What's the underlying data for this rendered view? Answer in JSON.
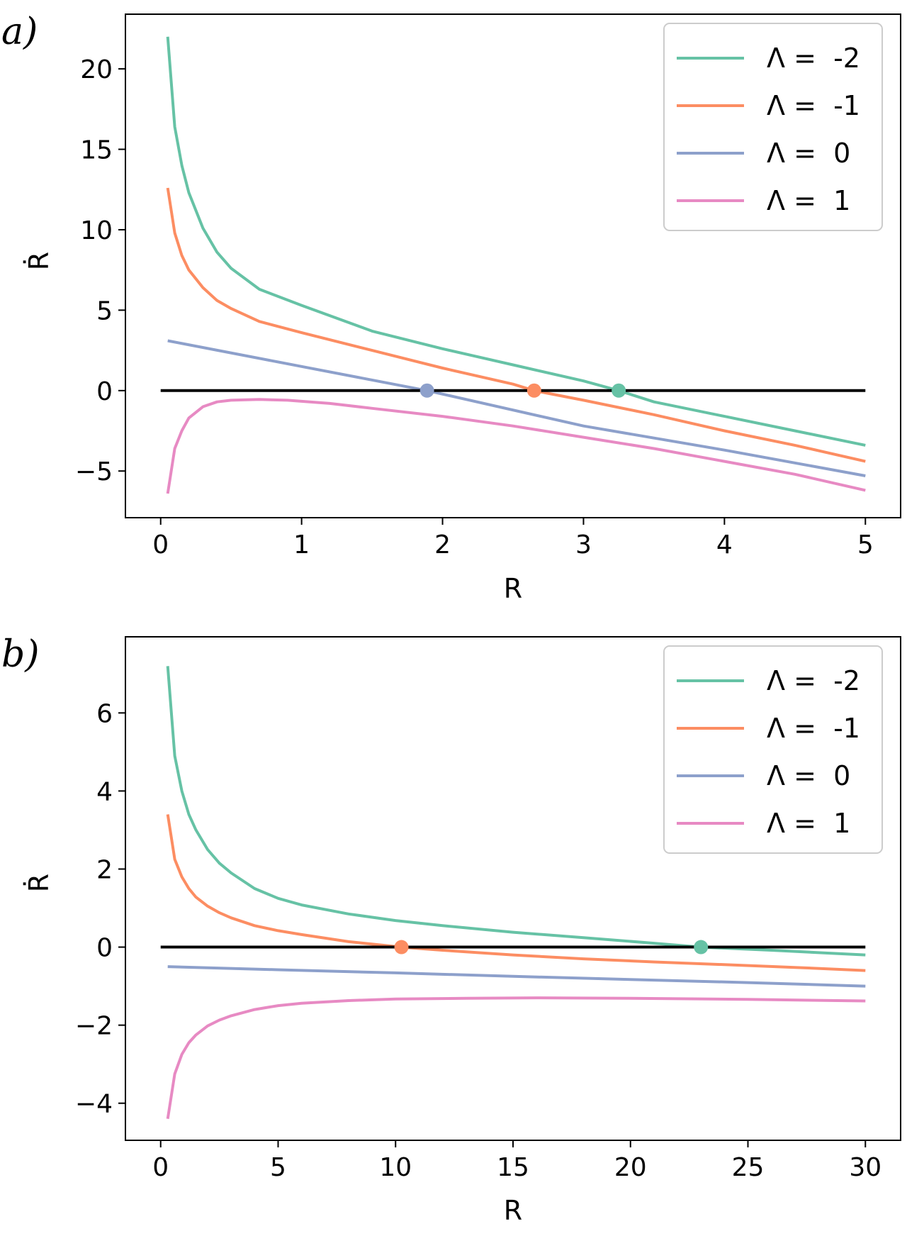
{
  "chart_data": [
    {
      "panel_label": "a)",
      "type": "line",
      "title": "",
      "xlabel": "R",
      "ylabel": "Ṙ",
      "xlim": [
        -0.25,
        5.25
      ],
      "ylim": [
        -7.9,
        23.4
      ],
      "xticks": [
        0,
        1,
        2,
        3,
        4,
        5
      ],
      "xtick_labels": [
        "0",
        "1",
        "2",
        "3",
        "4",
        "5"
      ],
      "yticks": [
        -5,
        0,
        5,
        10,
        15,
        20
      ],
      "ytick_labels": [
        "−5",
        "0",
        "5",
        "10",
        "15",
        "20"
      ],
      "grid": false,
      "legend_position": "top-right",
      "zero_line": {
        "x": [
          0,
          5
        ],
        "y": 0,
        "color": "#000000"
      },
      "series": [
        {
          "name": "Λ =  -2",
          "color": "#66c2a5",
          "x": [
            0.05,
            0.1,
            0.15,
            0.2,
            0.3,
            0.4,
            0.5,
            0.7,
            1.0,
            1.5,
            2.0,
            2.5,
            3.0,
            3.25,
            3.5,
            4.0,
            4.5,
            5.0
          ],
          "values": [
            22.0,
            16.4,
            14.0,
            12.3,
            10.1,
            8.6,
            7.6,
            6.3,
            5.3,
            3.7,
            2.6,
            1.6,
            0.6,
            0.0,
            -0.7,
            -1.6,
            -2.5,
            -3.4
          ]
        },
        {
          "name": "Λ =  -1",
          "color": "#fc8d62",
          "x": [
            0.05,
            0.1,
            0.15,
            0.2,
            0.3,
            0.4,
            0.5,
            0.7,
            1.0,
            1.5,
            2.0,
            2.5,
            2.65,
            3.0,
            3.5,
            4.0,
            4.5,
            5.0
          ],
          "values": [
            12.6,
            9.8,
            8.4,
            7.5,
            6.4,
            5.6,
            5.1,
            4.3,
            3.6,
            2.5,
            1.4,
            0.4,
            0.0,
            -0.6,
            -1.5,
            -2.5,
            -3.4,
            -4.4
          ]
        },
        {
          "name": "Λ =  0",
          "color": "#8da0cb",
          "x": [
            0.05,
            1.0,
            1.89,
            3.0,
            4.0,
            5.0
          ],
          "values": [
            3.1,
            1.5,
            0.0,
            -2.2,
            -3.7,
            -5.3
          ]
        },
        {
          "name": "Λ =  1",
          "color": "#e78ac3",
          "x": [
            0.05,
            0.1,
            0.15,
            0.2,
            0.3,
            0.4,
            0.5,
            0.7,
            0.9,
            1.2,
            1.5,
            2.0,
            2.5,
            3.0,
            3.5,
            4.0,
            4.5,
            5.0
          ],
          "values": [
            -6.4,
            -3.6,
            -2.5,
            -1.7,
            -1.0,
            -0.7,
            -0.6,
            -0.55,
            -0.6,
            -0.8,
            -1.1,
            -1.6,
            -2.2,
            -2.9,
            -3.6,
            -4.4,
            -5.2,
            -6.2
          ]
        }
      ],
      "fixed_points": [
        {
          "x": 1.89,
          "y": 0,
          "color": "#8da0cb"
        },
        {
          "x": 2.65,
          "y": 0,
          "color": "#fc8d62"
        },
        {
          "x": 3.25,
          "y": 0,
          "color": "#66c2a5"
        }
      ]
    },
    {
      "panel_label": "b)",
      "type": "line",
      "title": "",
      "xlabel": "R",
      "ylabel": "Ṙ",
      "xlim": [
        -1.5,
        31.5
      ],
      "ylim": [
        -4.95,
        7.95
      ],
      "xticks": [
        0,
        5,
        10,
        15,
        20,
        25,
        30
      ],
      "xtick_labels": [
        "0",
        "5",
        "10",
        "15",
        "20",
        "25",
        "30"
      ],
      "yticks": [
        -4,
        -2,
        0,
        2,
        4,
        6
      ],
      "ytick_labels": [
        "−4",
        "−2",
        "0",
        "2",
        "4",
        "6"
      ],
      "grid": false,
      "legend_position": "top-right",
      "zero_line": {
        "x": [
          0,
          30
        ],
        "y": 0,
        "color": "#000000"
      },
      "series": [
        {
          "name": "Λ =  -2",
          "color": "#66c2a5",
          "x": [
            0.3,
            0.6,
            0.9,
            1.2,
            1.5,
            2.0,
            2.5,
            3.0,
            4.0,
            5.0,
            6.0,
            8.0,
            10.0,
            12.0,
            15.0,
            18.0,
            21.0,
            23.0,
            26.0,
            30.0
          ],
          "values": [
            7.2,
            4.9,
            4.0,
            3.4,
            3.0,
            2.5,
            2.15,
            1.9,
            1.5,
            1.25,
            1.08,
            0.85,
            0.68,
            0.55,
            0.38,
            0.24,
            0.1,
            0.0,
            -0.08,
            -0.2
          ]
        },
        {
          "name": "Λ =  -1",
          "color": "#fc8d62",
          "x": [
            0.3,
            0.6,
            0.9,
            1.2,
            1.5,
            2.0,
            2.5,
            3.0,
            4.0,
            5.0,
            6.0,
            8.0,
            10.25,
            12.0,
            15.0,
            18.0,
            21.0,
            24.0,
            27.0,
            30.0
          ],
          "values": [
            3.4,
            2.25,
            1.8,
            1.5,
            1.28,
            1.05,
            0.88,
            0.75,
            0.55,
            0.42,
            0.32,
            0.14,
            0.0,
            -0.08,
            -0.2,
            -0.3,
            -0.38,
            -0.45,
            -0.52,
            -0.6
          ]
        },
        {
          "name": "Λ =  0",
          "color": "#8da0cb",
          "x": [
            0.3,
            5.0,
            10.0,
            15.0,
            20.0,
            25.0,
            30.0
          ],
          "values": [
            -0.5,
            -0.58,
            -0.66,
            -0.75,
            -0.83,
            -0.91,
            -1.0
          ]
        },
        {
          "name": "Λ =  1",
          "color": "#e78ac3",
          "x": [
            0.3,
            0.6,
            0.9,
            1.2,
            1.5,
            2.0,
            2.5,
            3.0,
            4.0,
            5.0,
            6.0,
            8.0,
            10.0,
            13.0,
            16.0,
            20.0,
            25.0,
            30.0
          ],
          "values": [
            -4.4,
            -3.25,
            -2.75,
            -2.45,
            -2.25,
            -2.02,
            -1.87,
            -1.76,
            -1.6,
            -1.5,
            -1.44,
            -1.37,
            -1.33,
            -1.31,
            -1.3,
            -1.31,
            -1.34,
            -1.38
          ]
        }
      ],
      "fixed_points": [
        {
          "x": 10.25,
          "y": 0,
          "color": "#fc8d62"
        },
        {
          "x": 23.0,
          "y": 0,
          "color": "#66c2a5"
        }
      ]
    }
  ]
}
